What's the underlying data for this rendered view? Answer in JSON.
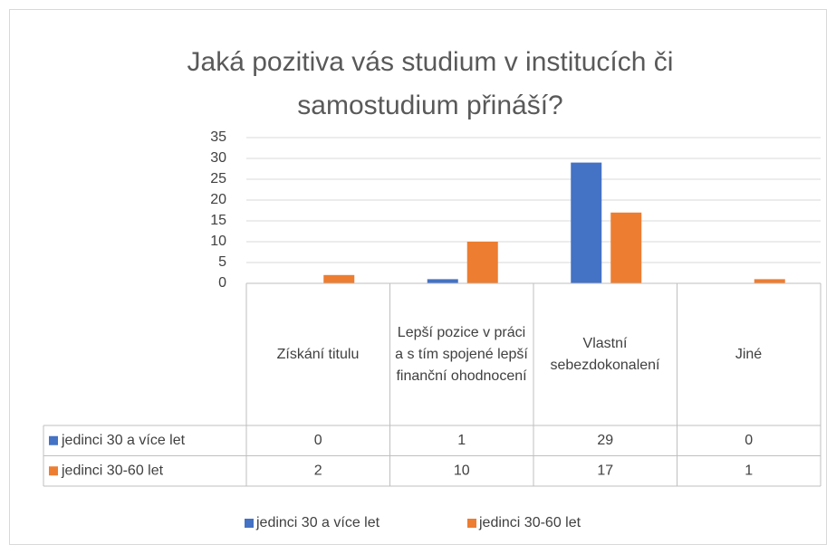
{
  "chart_data": {
    "type": "bar",
    "title": "Jaká pozitiva vás studium v institucích či samostudium přináší?",
    "categories": [
      "Získání titulu",
      "Lepší pozice v práci a s tím spojené lepší finanční ohodnocení",
      "Vlastní sebezdokonalení",
      "Jiné"
    ],
    "series": [
      {
        "name": "jedinci 30 a více let",
        "color": "#4472c4",
        "values": [
          0,
          1,
          29,
          0
        ]
      },
      {
        "name": "jedinci 30-60 let",
        "color": "#ed7d31",
        "values": [
          2,
          10,
          17,
          1
        ]
      }
    ],
    "ylim": [
      0,
      35
    ],
    "yticks": [
      0,
      5,
      10,
      15,
      20,
      25,
      30,
      35
    ],
    "grid": true,
    "data_table": true,
    "legend": "bottom"
  }
}
